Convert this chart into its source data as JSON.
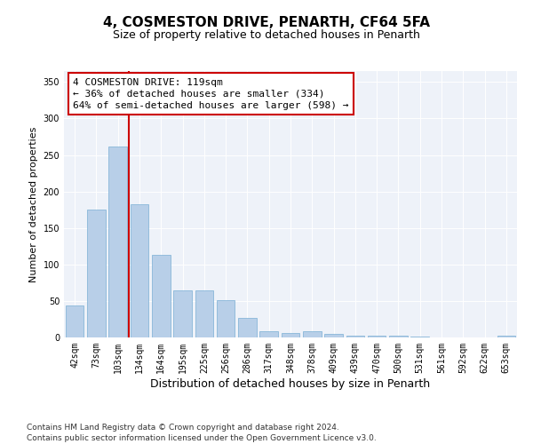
{
  "title": "4, COSMESTON DRIVE, PENARTH, CF64 5FA",
  "subtitle": "Size of property relative to detached houses in Penarth",
  "xlabel": "Distribution of detached houses by size in Penarth",
  "ylabel": "Number of detached properties",
  "bar_color": "#b8cfe8",
  "bar_edge_color": "#7aafd4",
  "background_color": "#eef2f9",
  "annotation_text": "4 COSMESTON DRIVE: 119sqm\n← 36% of detached houses are smaller (334)\n64% of semi-detached houses are larger (598) →",
  "vline_color": "#cc0000",
  "categories": [
    "42sqm",
    "73sqm",
    "103sqm",
    "134sqm",
    "164sqm",
    "195sqm",
    "225sqm",
    "256sqm",
    "286sqm",
    "317sqm",
    "348sqm",
    "378sqm",
    "409sqm",
    "439sqm",
    "470sqm",
    "500sqm",
    "531sqm",
    "561sqm",
    "592sqm",
    "622sqm",
    "653sqm"
  ],
  "values": [
    44,
    175,
    261,
    183,
    113,
    65,
    65,
    51,
    27,
    8,
    6,
    9,
    5,
    3,
    3,
    3,
    1,
    0,
    0,
    0,
    3
  ],
  "ylim": [
    0,
    365
  ],
  "yticks": [
    0,
    50,
    100,
    150,
    200,
    250,
    300,
    350
  ],
  "footnote": "Contains HM Land Registry data © Crown copyright and database right 2024.\nContains public sector information licensed under the Open Government Licence v3.0.",
  "title_fontsize": 11,
  "subtitle_fontsize": 9,
  "xlabel_fontsize": 9,
  "ylabel_fontsize": 8,
  "tick_fontsize": 7,
  "annot_fontsize": 8,
  "footnote_fontsize": 6.5
}
